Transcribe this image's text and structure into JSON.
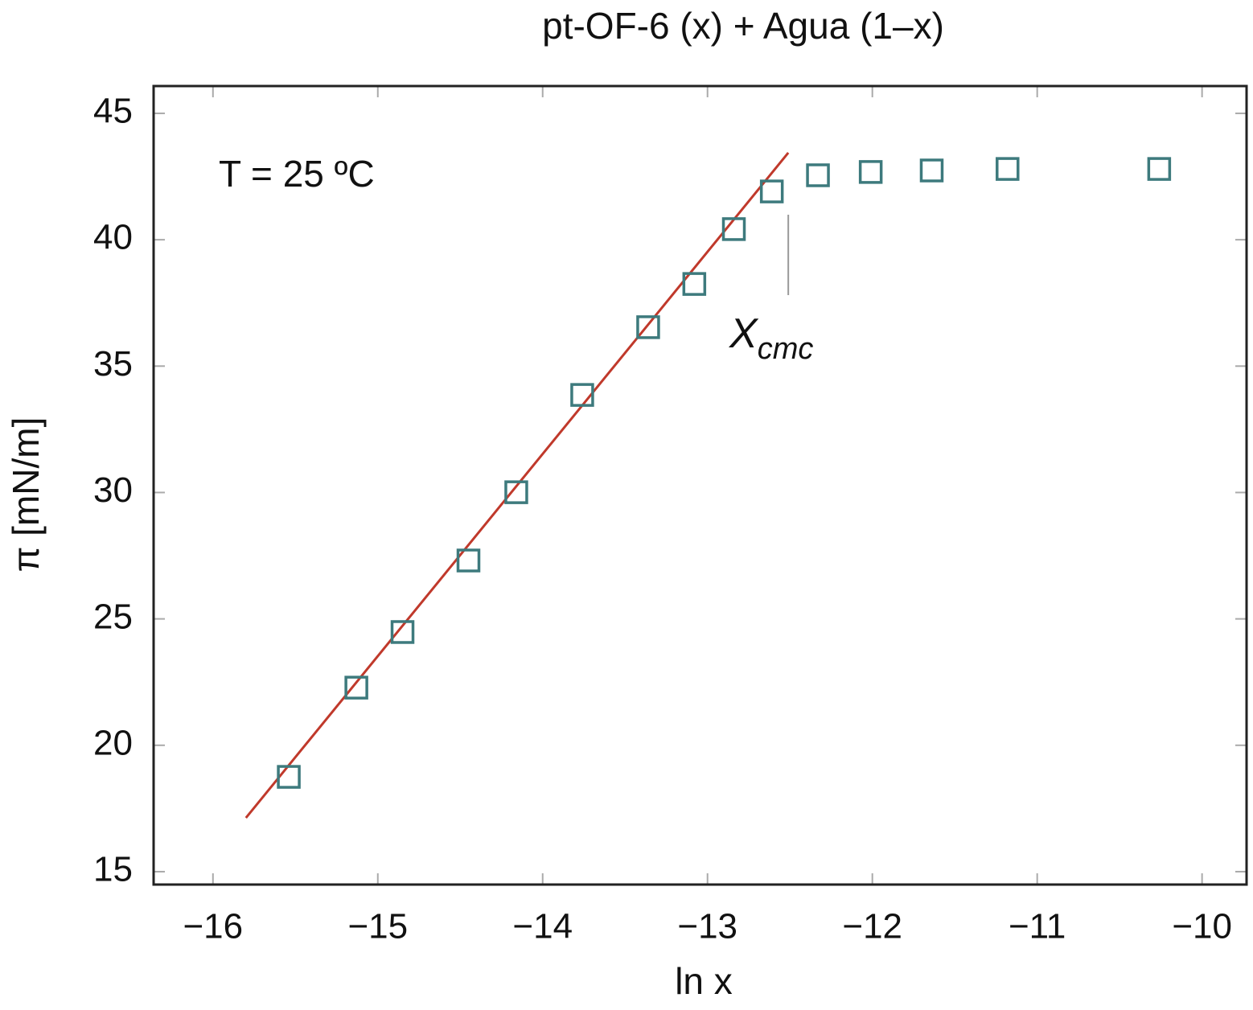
{
  "chart_data": {
    "type": "scatter",
    "title": "pt-OF-6 (x) + Agua (1–x)",
    "x_label": "ln x",
    "y_label": "π [mN/m]",
    "annotations": [
      {
        "text": "T = 25 ºC"
      },
      {
        "text": "X",
        "subscript": "cmc"
      }
    ],
    "x": [
      -15.54,
      -15.13,
      -14.85,
      -14.45,
      -14.16,
      -13.76,
      -13.36,
      -13.08,
      -12.84,
      -12.61,
      -12.33,
      -12.01,
      -11.64,
      -11.18,
      -10.26
    ],
    "values": [
      18.75,
      22.28,
      24.48,
      27.31,
      30.01,
      33.86,
      36.54,
      38.25,
      40.42,
      41.91,
      42.55,
      42.68,
      42.74,
      42.8,
      42.8
    ],
    "color": "#3d7a7d",
    "fit_line": {
      "x": [
        -15.8,
        -12.51
      ],
      "y": [
        17.13,
        43.44
      ],
      "color": "#c0392b"
    },
    "cmc_line": {
      "x": [
        -12.51,
        -12.51
      ],
      "y": [
        37.81,
        40.99
      ],
      "color": "#999999"
    },
    "xlim": [
      -16.36,
      -9.73
    ],
    "ylim": [
      14.49,
      46.08
    ],
    "xticks": [
      {
        "value": -16,
        "label": "−16"
      },
      {
        "value": -15,
        "label": "−15"
      },
      {
        "value": -14,
        "label": "−14"
      },
      {
        "value": -13,
        "label": "−13"
      },
      {
        "value": -12,
        "label": "−12"
      },
      {
        "value": -11,
        "label": "−11"
      },
      {
        "value": -10,
        "label": "−10"
      }
    ],
    "yticks": [
      15,
      20,
      25,
      30,
      35,
      40,
      45
    ],
    "grid": false
  }
}
